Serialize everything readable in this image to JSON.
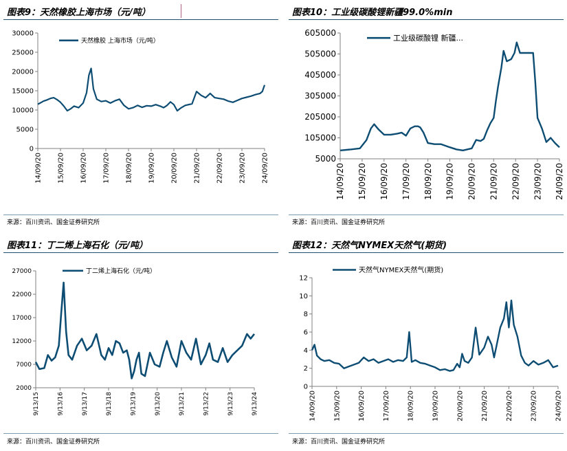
{
  "panels": [
    {
      "title": "图表9：天然橡胶上海市场（元/吨）",
      "source": "来源：百川资讯、国金证券研究所"
    },
    {
      "title": "图表10：工业级碳酸锂新疆99.0%min",
      "source": "来源：百川资讯、国金证券研究所"
    },
    {
      "title": "图表11：丁二烯上海石化（元/吨）",
      "source": "来源：百川资讯、国金证券研究所"
    },
    {
      "title": "图表12：天然气NYMEX天然气(期货)",
      "source": "来源：百川资讯、国金证券研究所"
    }
  ],
  "colors": {
    "line": "#0e4d73",
    "axis": "#7f7f7f",
    "rule": "#1d4e6e"
  },
  "chart_data": [
    {
      "type": "line",
      "title": "",
      "ylim": [
        0,
        30000
      ],
      "yticks": [
        0,
        5000,
        10000,
        15000,
        20000,
        25000,
        30000
      ],
      "ytick_labels": [
        "0",
        "5000",
        "10000",
        "15000",
        "20000",
        "25000",
        "30000"
      ],
      "xticks": [
        "14/09/20",
        "15/09/20",
        "16/09/20",
        "17/09/20",
        "18/09/20",
        "19/09/20",
        "20/09/20",
        "21/09/20",
        "22/09/20",
        "23/09/20",
        "24/09/20"
      ],
      "xlim": [
        0,
        10
      ],
      "series": [
        {
          "name": "天然橡胶 上海市场（元/吨）",
          "x": [
            0,
            0.1,
            0.25,
            0.4,
            0.55,
            0.7,
            0.85,
            1.0,
            1.15,
            1.3,
            1.45,
            1.6,
            1.8,
            2.0,
            2.15,
            2.25,
            2.35,
            2.45,
            2.6,
            2.8,
            3.0,
            3.2,
            3.4,
            3.6,
            3.8,
            4.0,
            4.2,
            4.4,
            4.6,
            4.8,
            5.0,
            5.2,
            5.4,
            5.55,
            5.7,
            5.85,
            6.0,
            6.15,
            6.3,
            6.5,
            6.8,
            7.0,
            7.2,
            7.4,
            7.6,
            7.8,
            8.0,
            8.2,
            8.4,
            8.6,
            8.8,
            9.0,
            9.2,
            9.4,
            9.6,
            9.8,
            9.9,
            10.0
          ],
          "y": [
            11500,
            11800,
            12300,
            12600,
            13000,
            13200,
            12700,
            12000,
            11000,
            9800,
            10300,
            11000,
            10600,
            11800,
            14500,
            19000,
            20800,
            15500,
            12800,
            12200,
            12400,
            11800,
            12400,
            12800,
            11200,
            10300,
            10600,
            11200,
            10700,
            11100,
            11000,
            11400,
            11000,
            10600,
            11200,
            12100,
            11400,
            9800,
            10500,
            11200,
            11600,
            14800,
            13800,
            13200,
            14300,
            13200,
            13000,
            12800,
            12300,
            12000,
            12500,
            13000,
            13300,
            13600,
            14000,
            14300,
            14800,
            16500
          ]
        }
      ]
    },
    {
      "type": "line",
      "title": "",
      "ylim": [
        5000,
        605000
      ],
      "yticks": [
        5000,
        105000,
        205000,
        305000,
        405000,
        505000,
        605000
      ],
      "ytick_labels": [
        "5000",
        "105000",
        "205000",
        "305000",
        "405000",
        "505000",
        "605000"
      ],
      "xticks": [
        "14/09/20",
        "15/09/20",
        "16/09/20",
        "17/09/20",
        "18/09/20",
        "19/09/20",
        "20/09/20",
        "21/09/20",
        "22/09/20",
        "23/09/20",
        "24/09/20"
      ],
      "xlim": [
        0,
        10
      ],
      "series": [
        {
          "name": "工业级碳酸锂 新疆...",
          "x": [
            0,
            0.5,
            0.9,
            1.2,
            1.4,
            1.55,
            1.75,
            2.0,
            2.3,
            2.6,
            2.8,
            3.0,
            3.2,
            3.4,
            3.55,
            3.65,
            3.8,
            4.0,
            4.3,
            4.6,
            5.0,
            5.3,
            5.6,
            6.0,
            6.2,
            6.4,
            6.55,
            6.7,
            6.85,
            7.0,
            7.1,
            7.2,
            7.35,
            7.45,
            7.6,
            7.8,
            7.95,
            8.05,
            8.2,
            8.5,
            8.8,
            8.9,
            9.0,
            9.2,
            9.4,
            9.6,
            9.8,
            10.0
          ],
          "y": [
            45000,
            50000,
            55000,
            95000,
            150000,
            170000,
            145000,
            120000,
            120000,
            125000,
            130000,
            115000,
            150000,
            160000,
            160000,
            155000,
            130000,
            80000,
            75000,
            75000,
            60000,
            50000,
            45000,
            55000,
            95000,
            90000,
            100000,
            140000,
            175000,
            200000,
            280000,
            350000,
            440000,
            520000,
            470000,
            480000,
            510000,
            560000,
            510000,
            510000,
            510000,
            370000,
            200000,
            150000,
            85000,
            105000,
            80000,
            60000
          ]
        }
      ]
    },
    {
      "type": "line",
      "title": "",
      "ylim": [
        2000,
        27000
      ],
      "yticks": [
        2000,
        7000,
        12000,
        17000,
        22000,
        27000
      ],
      "ytick_labels": [
        "2000",
        "7000",
        "12000",
        "17000",
        "22000",
        "27000"
      ],
      "xticks": [
        "9/13/15",
        "9/13/16",
        "9/13/17",
        "9/13/18",
        "9/13/19",
        "9/13/20",
        "9/13/21",
        "9/13/22",
        "9/13/23",
        "9/13/24"
      ],
      "xlim": [
        0,
        9
      ],
      "series": [
        {
          "name": "丁二烯上海石化（元/吨）",
          "x": [
            0,
            0.15,
            0.35,
            0.5,
            0.65,
            0.8,
            0.95,
            1.05,
            1.15,
            1.25,
            1.35,
            1.5,
            1.7,
            1.9,
            2.1,
            2.3,
            2.5,
            2.7,
            2.85,
            3.0,
            3.15,
            3.3,
            3.45,
            3.6,
            3.75,
            3.85,
            3.95,
            4.05,
            4.15,
            4.25,
            4.35,
            4.5,
            4.7,
            4.9,
            5.1,
            5.25,
            5.4,
            5.6,
            5.8,
            6.0,
            6.2,
            6.4,
            6.6,
            6.8,
            7.0,
            7.15,
            7.3,
            7.5,
            7.7,
            7.9,
            8.1,
            8.3,
            8.5,
            8.7,
            8.85,
            9.0
          ],
          "y": [
            7500,
            6000,
            6200,
            9000,
            7800,
            8500,
            11000,
            18000,
            24500,
            14000,
            9000,
            8000,
            11000,
            12500,
            10000,
            11000,
            13500,
            9000,
            8000,
            10500,
            9000,
            12000,
            11500,
            9500,
            10000,
            8000,
            4000,
            5500,
            8000,
            9500,
            5000,
            4500,
            9500,
            7000,
            6500,
            9500,
            12000,
            8500,
            6500,
            12000,
            9500,
            8000,
            12500,
            7000,
            9000,
            11500,
            8000,
            7500,
            10500,
            7500,
            9000,
            10000,
            11000,
            13500,
            12500,
            13500
          ]
        }
      ]
    },
    {
      "type": "line",
      "title": "",
      "ylim": [
        0,
        12
      ],
      "yticks": [
        0,
        2,
        4,
        6,
        8,
        10,
        12
      ],
      "ytick_labels": [
        "0",
        "2",
        "4",
        "6",
        "8",
        "10",
        "12"
      ],
      "xticks": [
        "14/09/20",
        "15/09/20",
        "16/09/20",
        "17/09/20",
        "18/09/20",
        "19/09/20",
        "20/09/20",
        "21/09/20",
        "22/09/20",
        "23/09/20",
        "24/09/20"
      ],
      "xlim": [
        0,
        10
      ],
      "series": [
        {
          "name": "天然气NYMEX天然气(期货)",
          "x": [
            0,
            0.1,
            0.2,
            0.35,
            0.5,
            0.7,
            0.9,
            1.1,
            1.3,
            1.5,
            1.7,
            1.9,
            2.1,
            2.3,
            2.5,
            2.7,
            2.9,
            3.1,
            3.3,
            3.5,
            3.7,
            3.85,
            3.95,
            4.05,
            4.2,
            4.4,
            4.6,
            4.8,
            5.0,
            5.2,
            5.4,
            5.6,
            5.75,
            5.9,
            6.0,
            6.05,
            6.1,
            6.2,
            6.35,
            6.5,
            6.65,
            6.8,
            7.0,
            7.15,
            7.3,
            7.4,
            7.5,
            7.65,
            7.8,
            7.9,
            8.0,
            8.1,
            8.2,
            8.35,
            8.5,
            8.65,
            8.8,
            9.0,
            9.2,
            9.4,
            9.6,
            9.8,
            10.0
          ],
          "y": [
            4.0,
            4.6,
            3.4,
            3.0,
            2.8,
            2.9,
            2.6,
            2.5,
            2.0,
            2.2,
            2.4,
            2.6,
            3.2,
            2.8,
            3.0,
            2.6,
            2.8,
            3.0,
            2.7,
            2.9,
            2.8,
            3.2,
            6.0,
            2.7,
            2.9,
            2.6,
            2.5,
            2.3,
            2.1,
            1.8,
            1.9,
            1.7,
            1.8,
            2.5,
            2.1,
            2.8,
            3.6,
            2.8,
            2.6,
            3.2,
            6.5,
            3.5,
            4.3,
            5.5,
            4.6,
            3.2,
            4.5,
            6.5,
            7.5,
            9.3,
            6.5,
            9.5,
            6.8,
            5.5,
            3.4,
            2.6,
            2.3,
            2.8,
            2.4,
            2.6,
            2.9,
            2.1,
            2.3
          ]
        }
      ]
    }
  ]
}
